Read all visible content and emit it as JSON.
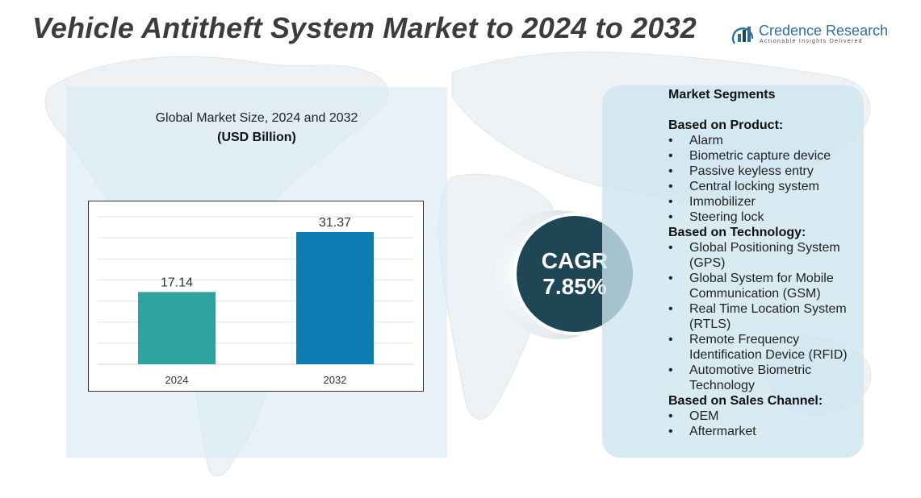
{
  "header": {
    "title": "Vehicle Antitheft System Market to 2024 to 2032"
  },
  "logo": {
    "name": "Credence Research",
    "tagline": "Actionable Insights Delivered",
    "icon": "bar-chart-icon"
  },
  "chart_data": {
    "type": "bar",
    "title": "Global Market Size, 2024 and 2032",
    "subtitle": "(USD Billion)",
    "categories": [
      "2024",
      "2032"
    ],
    "values": [
      17.14,
      31.37
    ],
    "value_labels": [
      "17.14",
      "31.37"
    ],
    "colors": [
      "#2fa19f",
      "#0b7db3"
    ],
    "ylim": [
      0,
      35
    ],
    "grid": true,
    "legend": "none"
  },
  "cagr": {
    "label": "CAGR",
    "value": "7.85%"
  },
  "segments": {
    "heading": "Market Segments",
    "groups": [
      {
        "title": "Based on Product:",
        "items": [
          "Alarm",
          "Biometric capture device",
          "Passive keyless entry",
          "Central locking system",
          "Immobilizer",
          "Steering lock"
        ]
      },
      {
        "title": "Based on Technology:",
        "items": [
          "Global Positioning System (GPS)",
          "Global System for Mobile Communication (GSM)",
          "Real Time Location System (RTLS)",
          "Remote Frequency Identification Device (RFID)",
          "Automotive Biometric Technology"
        ]
      },
      {
        "title": "Based on Sales Channel:",
        "items": [
          "OEM",
          "Aftermarket"
        ]
      }
    ]
  },
  "colors": {
    "accent_dark": "#1f4654",
    "panel": "#d6eaf4",
    "title": "#3c3c3c"
  }
}
